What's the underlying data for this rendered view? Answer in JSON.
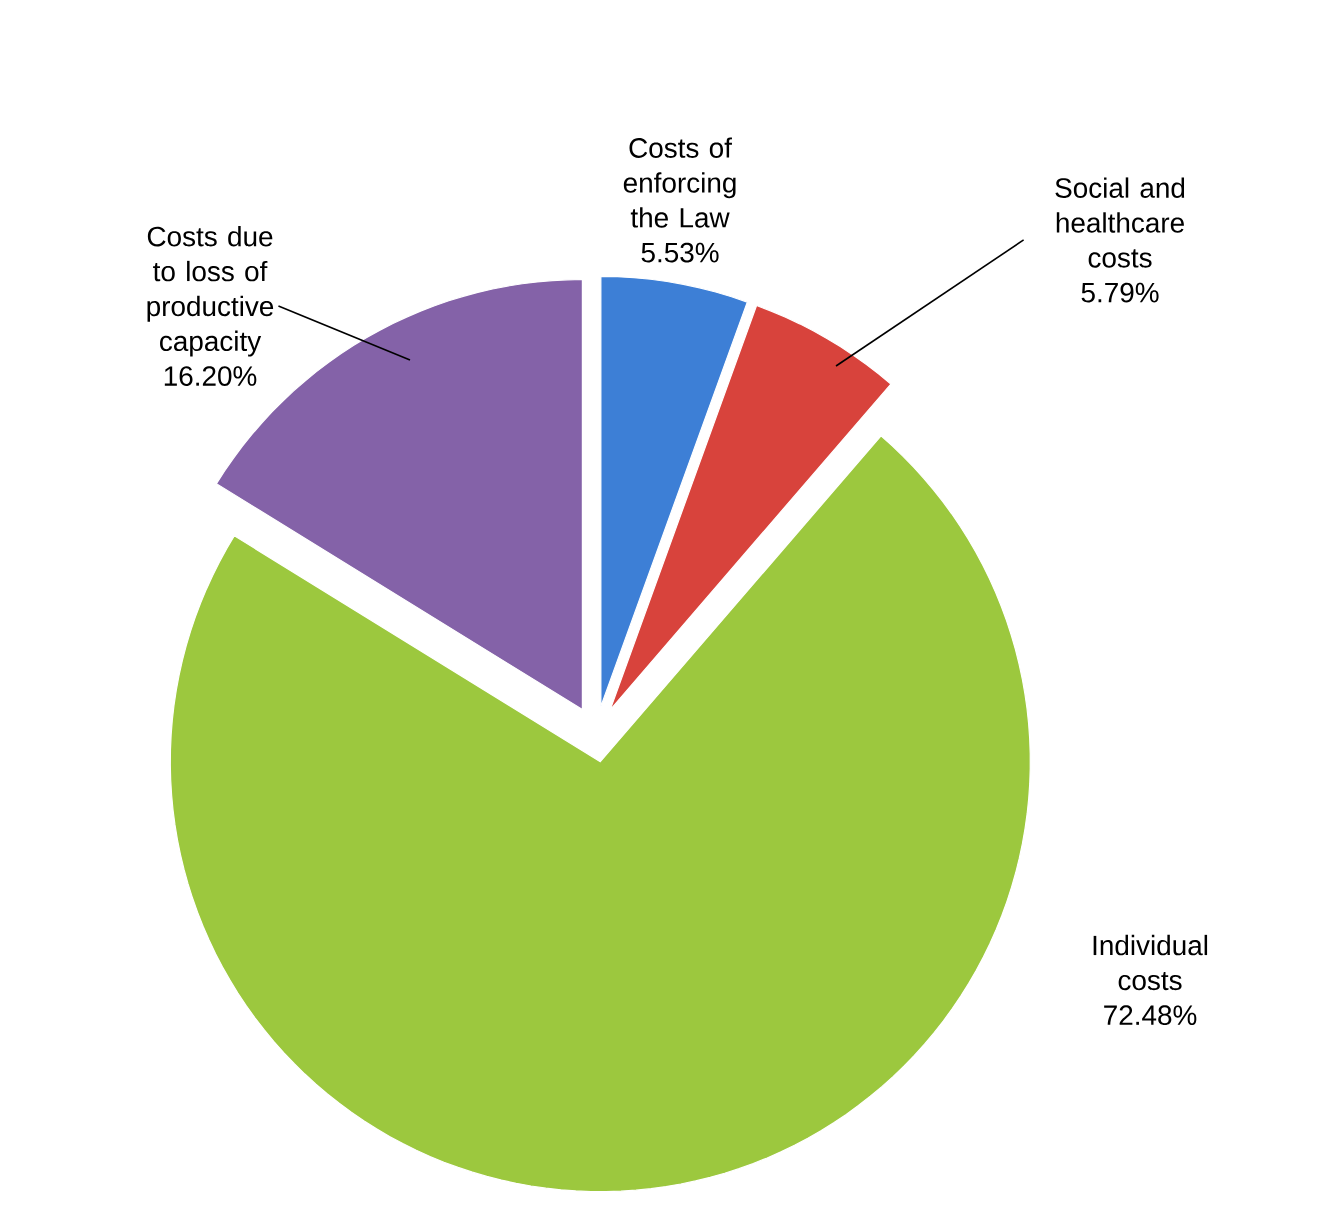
{
  "chart_data": {
    "type": "pie",
    "categories": [
      "Costs of enforcing the Law",
      "Social and healthcare costs",
      "Individual costs",
      "Costs due to loss of productive capacity"
    ],
    "values": [
      5.53,
      5.79,
      72.48,
      16.2
    ],
    "value_labels": [
      "5.53%",
      "5.79%",
      "72.48%",
      "16.20%"
    ],
    "colors": [
      "#3d7fd6",
      "#d8433c",
      "#9cc83e",
      "#8462a8"
    ],
    "legend": false
  }
}
